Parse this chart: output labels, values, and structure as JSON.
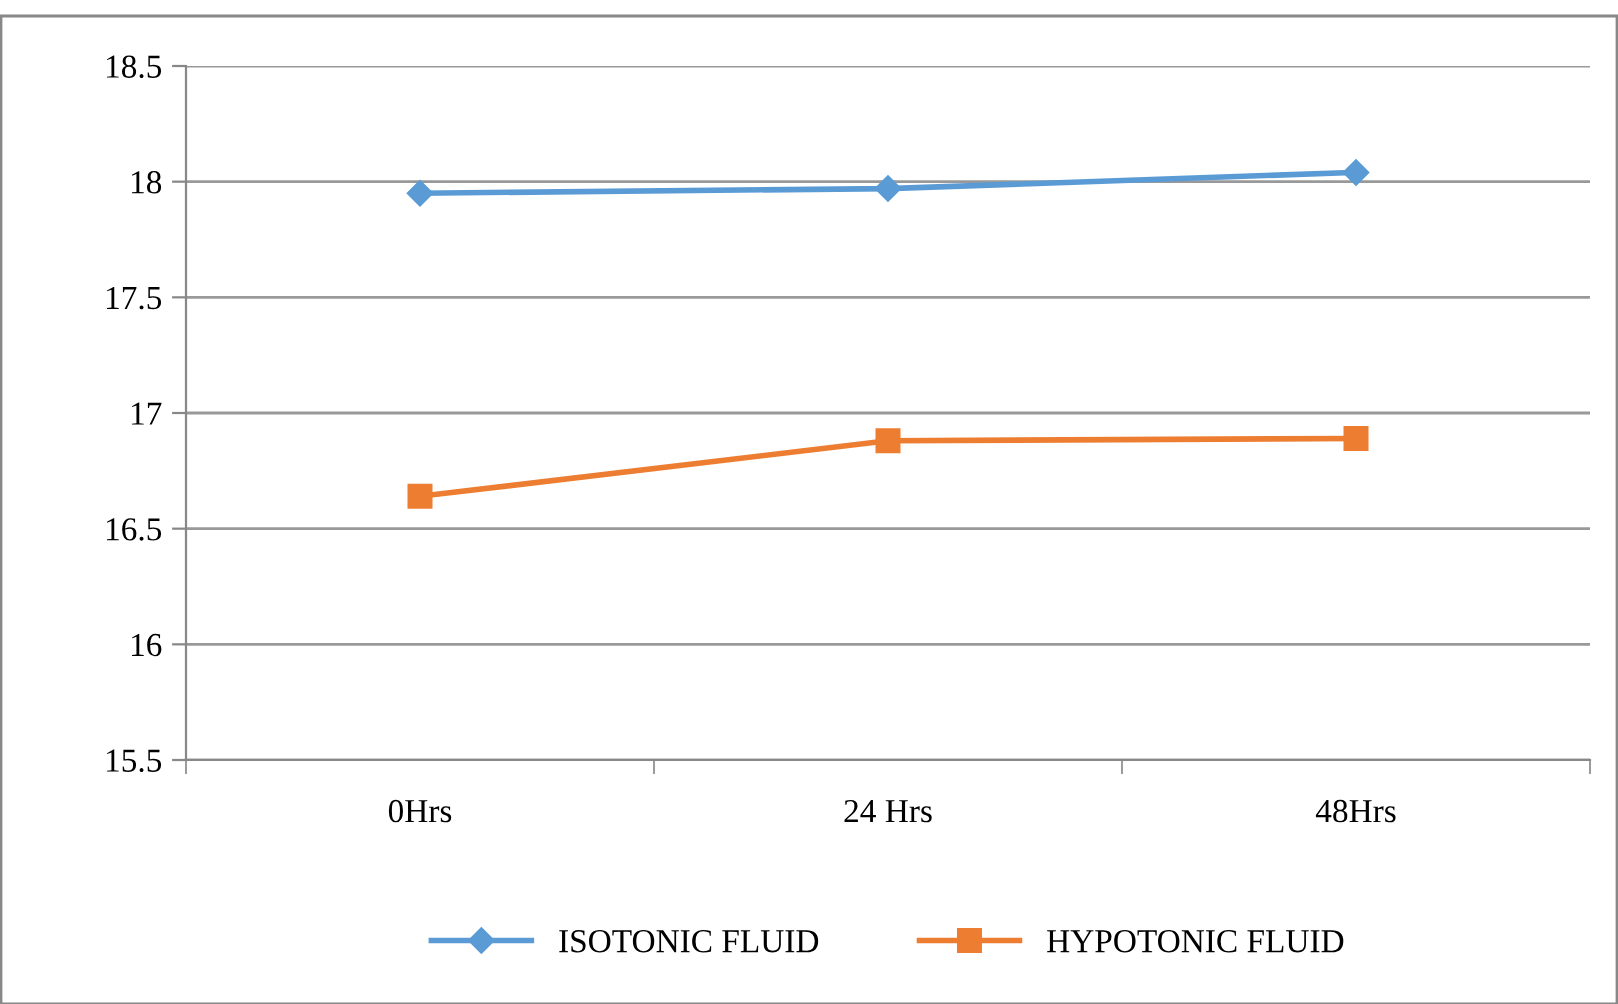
{
  "chart_data": {
    "type": "line",
    "categories": [
      "0Hrs",
      "24 Hrs",
      "48Hrs"
    ],
    "series": [
      {
        "name": "ISOTONIC FLUID",
        "color": "#5b9bd5",
        "marker": "diamond",
        "values": [
          17.95,
          17.97,
          18.04
        ]
      },
      {
        "name": "HYPOTONIC FLUID",
        "color": "#ed7d31",
        "marker": "square",
        "values": [
          16.64,
          16.88,
          16.89
        ]
      }
    ],
    "ylim": [
      15.5,
      18.5
    ],
    "yticks": [
      15.5,
      16,
      16.5,
      17,
      17.5,
      18,
      18.5
    ],
    "grid": "y",
    "legend": "bottom"
  }
}
